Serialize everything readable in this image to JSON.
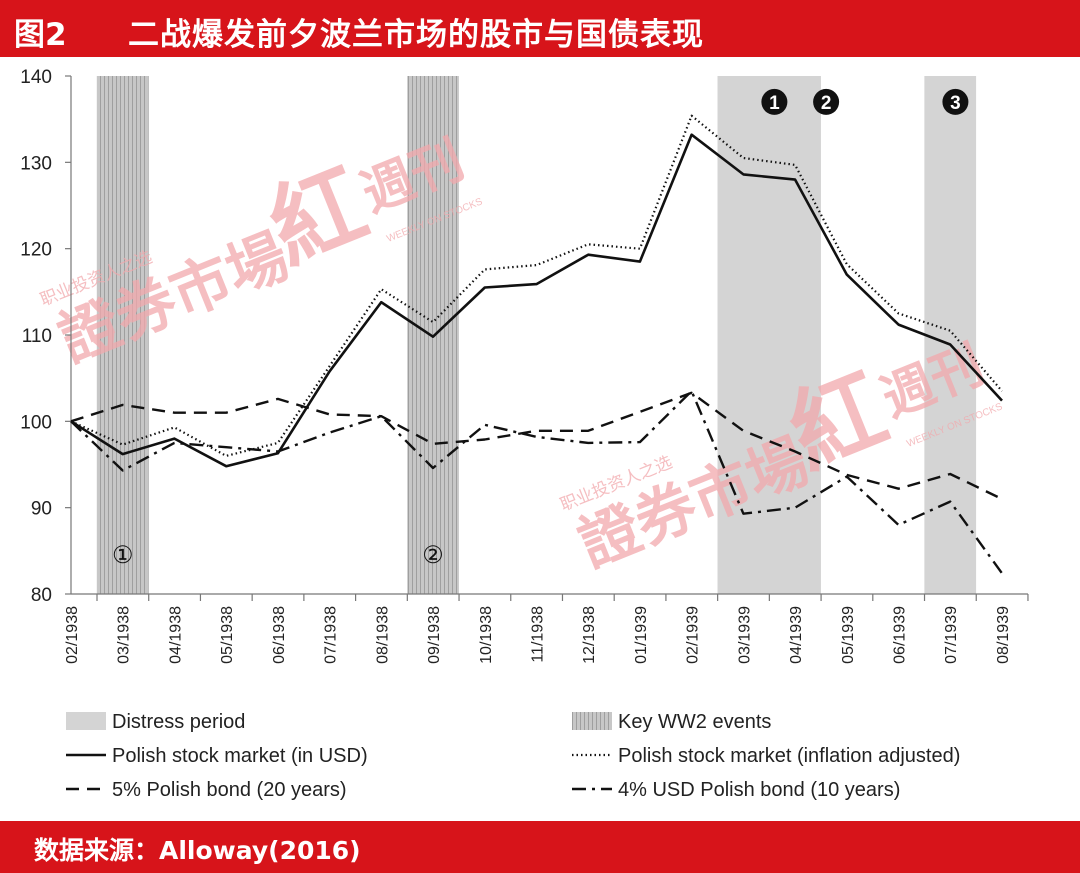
{
  "header": {
    "figure_label": "图2",
    "title": "二战爆发前夕波兰市场的股市与国债表现"
  },
  "footer": {
    "source": "数据来源：Alloway(2016)"
  },
  "watermark": {
    "main": "證券市場",
    "red": "紅",
    "weekly": "週刊",
    "small_cn": "职业投资人之选",
    "small_en": "WEEKLY ON STOCKS"
  },
  "chart_data": {
    "type": "line",
    "categories": [
      "02/1938",
      "03/1938",
      "04/1938",
      "05/1938",
      "06/1938",
      "07/1938",
      "08/1938",
      "09/1938",
      "10/1938",
      "11/1938",
      "12/1938",
      "01/1939",
      "02/1939",
      "03/1939",
      "04/1939",
      "05/1939",
      "06/1939",
      "07/1939",
      "08/1939"
    ],
    "ylim": [
      80,
      140
    ],
    "yticks": [
      80,
      90,
      100,
      110,
      120,
      130,
      140
    ],
    "distress_periods": [
      [
        12.5,
        14.5
      ],
      [
        16.5,
        17.5
      ]
    ],
    "key_events": [
      {
        "label": "①",
        "at": [
          0.5,
          1.5
        ]
      },
      {
        "label": "②",
        "at": [
          6.5,
          7.5
        ]
      }
    ],
    "distress_markers": [
      {
        "label": "1",
        "x": 13.6,
        "y": 137
      },
      {
        "label": "2",
        "x": 14.6,
        "y": 137
      },
      {
        "label": "3",
        "x": 17.1,
        "y": 137
      }
    ],
    "series": [
      {
        "name": "Polish stock market (in USD)",
        "style": "solid",
        "values": [
          100,
          96.2,
          98.0,
          94.8,
          96.3,
          105.8,
          113.8,
          109.8,
          115.5,
          115.9,
          119.3,
          118.5,
          133.2,
          128.6,
          128.0,
          117.0,
          111.2,
          108.9,
          102.4
        ]
      },
      {
        "name": "Polish stock market (inflation adjusted)",
        "style": "dotted",
        "values": [
          100,
          97.3,
          99.3,
          96.0,
          97.5,
          106.4,
          115.3,
          111.5,
          117.6,
          118.1,
          120.5,
          120.0,
          135.4,
          130.5,
          129.7,
          118.2,
          112.5,
          110.5,
          103.5
        ]
      },
      {
        "name": "5% Polish bond (20 years)",
        "style": "dashed",
        "values": [
          100,
          101.9,
          101.0,
          101.0,
          102.6,
          100.8,
          100.6,
          97.4,
          97.9,
          98.9,
          98.9,
          101.1,
          103.3,
          98.9,
          96.5,
          93.8,
          92.2,
          93.9,
          91.0
        ]
      },
      {
        "name": "4% USD Polish bond (10 years)",
        "style": "dashdot",
        "values": [
          100,
          94.3,
          97.5,
          97.0,
          96.5,
          98.7,
          100.6,
          94.6,
          99.6,
          98.2,
          97.5,
          97.6,
          103.5,
          89.3,
          90.0,
          93.6,
          88.0,
          90.7,
          82.4
        ]
      }
    ],
    "legend": {
      "position": "bottom",
      "items": [
        {
          "label": "Distress period",
          "kind": "light-box"
        },
        {
          "label": "Key WW2 events",
          "kind": "hatched-box"
        },
        {
          "label": "Polish stock market (in USD)",
          "kind": "solid"
        },
        {
          "label": "Polish stock market (inflation adjusted)",
          "kind": "dotted"
        },
        {
          "label": "5% Polish bond (20 years)",
          "kind": "dashed"
        },
        {
          "label": "4% USD Polish bond (10 years)",
          "kind": "dashdot"
        }
      ]
    },
    "grid": false
  },
  "colors": {
    "banner": "#d7141a",
    "distress": "#d4d4d4",
    "event": "#b5b5b5",
    "line": "#111111",
    "watermark": "#f2a9ad"
  }
}
